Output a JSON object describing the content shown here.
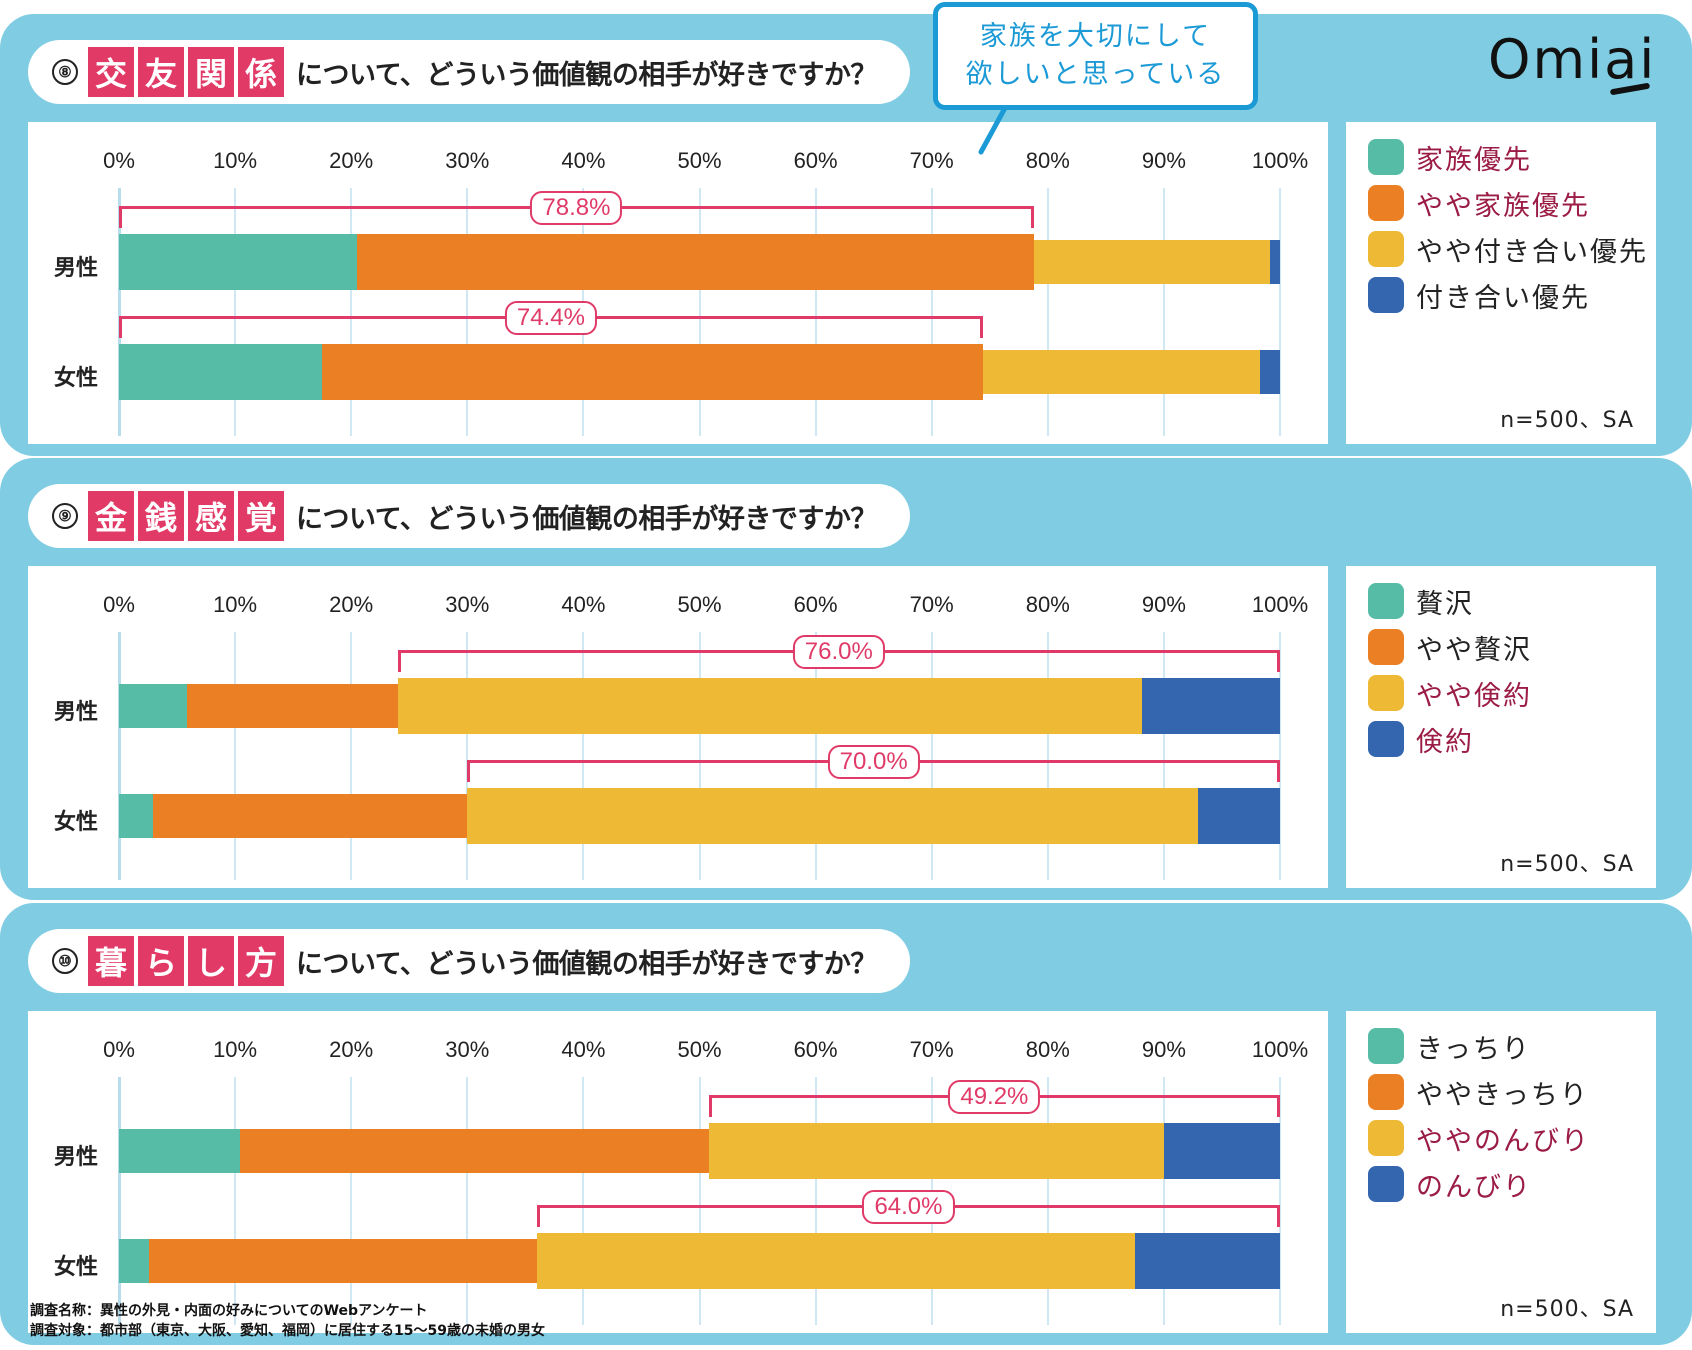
{
  "brand": {
    "logo": "Omiai"
  },
  "callout": {
    "line1": "家族を大切にして",
    "line2": "欲しいと思っている"
  },
  "colors": {
    "panel_bg": "#80cde3",
    "keyword_bg": "#e23a67",
    "bracket": "#e03a68",
    "highlight_text": "#9b1c45",
    "series": [
      "#56bca5",
      "#ea8023",
      "#eeb935",
      "#3466b0"
    ]
  },
  "axis": {
    "ticks": [
      "0%",
      "10%",
      "20%",
      "30%",
      "40%",
      "50%",
      "60%",
      "70%",
      "80%",
      "90%",
      "100%"
    ]
  },
  "rows": [
    "男性",
    "女性"
  ],
  "sample_note": "n=500、SA",
  "footer": {
    "line1": "調査名称：異性の外見・内面の好みについてのWebアンケート",
    "line2": "調査対象：都市部（東京、大阪、愛知、福岡）に居住する15〜59歳の未婚の男女"
  },
  "sections": [
    {
      "number": "⑧",
      "keyword": [
        "交",
        "友",
        "関",
        "係"
      ],
      "question": "について、どういう価値観の相手が好きですか？",
      "legend": [
        {
          "label": "家族優先",
          "highlight": true
        },
        {
          "label": "やや家族優先",
          "highlight": true
        },
        {
          "label": "やや付き合い優先",
          "highlight": false
        },
        {
          "label": "付き合い優先",
          "highlight": false
        }
      ],
      "brackets": [
        {
          "label": "78.8%",
          "from": 0,
          "to": 78.8
        },
        {
          "label": "74.4%",
          "from": 0,
          "to": 74.4
        }
      ]
    },
    {
      "number": "⑨",
      "keyword": [
        "金",
        "銭",
        "感",
        "覚"
      ],
      "question": "について、どういう価値観の相手が好きですか？",
      "legend": [
        {
          "label": "贅沢",
          "highlight": false
        },
        {
          "label": "やや贅沢",
          "highlight": false
        },
        {
          "label": "やや倹約",
          "highlight": true
        },
        {
          "label": "倹約",
          "highlight": true
        }
      ],
      "brackets": [
        {
          "label": "76.0%",
          "from": 24.0,
          "to": 100
        },
        {
          "label": "70.0%",
          "from": 30.0,
          "to": 100
        }
      ]
    },
    {
      "number": "⑩",
      "keyword": [
        "暮",
        "ら",
        "し",
        "方"
      ],
      "question": "について、どういう価値観の相手が好きですか？",
      "legend": [
        {
          "label": "きっちり",
          "highlight": false
        },
        {
          "label": "ややきっちり",
          "highlight": false
        },
        {
          "label": "ややのんびり",
          "highlight": true
        },
        {
          "label": "のんびり",
          "highlight": true
        }
      ],
      "brackets": [
        {
          "label": "49.2%",
          "from": 50.8,
          "to": 100
        },
        {
          "label": "64.0%",
          "from": 36.0,
          "to": 100
        }
      ]
    }
  ],
  "chart_data": [
    {
      "type": "bar",
      "stacked": true,
      "orientation": "horizontal",
      "title": "⑧交友関係について、どういう価値観の相手が好きですか？",
      "categories": [
        "男性",
        "女性"
      ],
      "series": [
        {
          "name": "家族優先",
          "values": [
            20.5,
            17.5
          ]
        },
        {
          "name": "やや家族優先",
          "values": [
            58.3,
            56.9
          ]
        },
        {
          "name": "やや付き合い優先",
          "values": [
            20.3,
            23.9
          ]
        },
        {
          "name": "付き合い優先",
          "values": [
            0.9,
            1.7
          ]
        }
      ],
      "annotations": [
        "78.8%",
        "74.4%"
      ],
      "xlim": [
        0,
        100
      ],
      "xlabel": "",
      "ylabel": "",
      "grid": true,
      "legend_position": "right",
      "note": "n=500、SA"
    },
    {
      "type": "bar",
      "stacked": true,
      "orientation": "horizontal",
      "title": "⑨金銭感覚について、どういう価値観の相手が好きですか？",
      "categories": [
        "男性",
        "女性"
      ],
      "series": [
        {
          "name": "贅沢",
          "values": [
            5.9,
            2.9
          ]
        },
        {
          "name": "やや贅沢",
          "values": [
            18.1,
            27.1
          ]
        },
        {
          "name": "やや倹約",
          "values": [
            64.1,
            62.9
          ]
        },
        {
          "name": "倹約",
          "values": [
            11.9,
            7.1
          ]
        }
      ],
      "annotations": [
        "76.0%",
        "70.0%"
      ],
      "xlim": [
        0,
        100
      ],
      "xlabel": "",
      "ylabel": "",
      "grid": true,
      "legend_position": "right",
      "note": "n=500、SA"
    },
    {
      "type": "bar",
      "stacked": true,
      "orientation": "horizontal",
      "title": "⑩暮らし方について、どういう価値観の相手が好きですか？",
      "categories": [
        "男性",
        "女性"
      ],
      "series": [
        {
          "name": "きっちり",
          "values": [
            10.4,
            2.6
          ]
        },
        {
          "name": "ややきっちり",
          "values": [
            40.4,
            33.4
          ]
        },
        {
          "name": "ややのんびり",
          "values": [
            39.2,
            51.5
          ]
        },
        {
          "name": "のんびり",
          "values": [
            10.0,
            12.5
          ]
        }
      ],
      "annotations": [
        "49.2%",
        "64.0%"
      ],
      "xlim": [
        0,
        100
      ],
      "xlabel": "",
      "ylabel": "",
      "grid": true,
      "legend_position": "right",
      "note": "n=500、SA"
    }
  ]
}
